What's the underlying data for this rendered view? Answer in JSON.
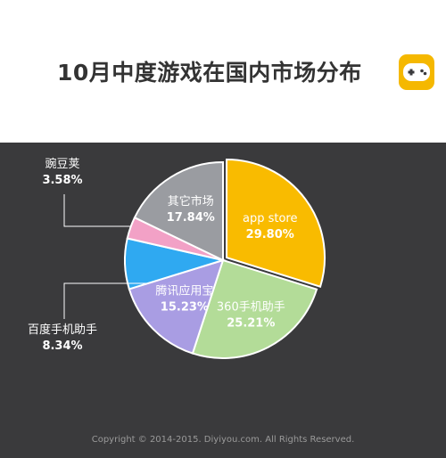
{
  "header": {
    "title": "10月中度游戏在国内市场分布"
  },
  "footer": {
    "copyright": "Copyright © 2014-2015. Diyiyou.com. All Rights Reserved."
  },
  "logo": {
    "icon": "gamepad-icon",
    "color": "#f5b800"
  },
  "chart_data": {
    "type": "pie",
    "title": "10月中度游戏在国内市场分布",
    "start_angle_deg": 0,
    "direction": "clockwise",
    "slices": [
      {
        "label": "app store",
        "value": 29.8,
        "value_text": "29.80%",
        "color": "#f9bb00",
        "explode": true,
        "label_color": "#ffffff"
      },
      {
        "label": "360手机助手",
        "value": 25.21,
        "value_text": "25.21%",
        "color": "#b3dc98",
        "explode": false,
        "label_color": "#ffffff"
      },
      {
        "label": "腾讯应用宝",
        "value": 15.23,
        "value_text": "15.23%",
        "color": "#a99de3",
        "explode": false,
        "label_color": "#ffffff"
      },
      {
        "label": "百度手机助手",
        "value": 8.34,
        "value_text": "8.34%",
        "color": "#2fa9f1",
        "explode": false,
        "label_color": "#ffffff",
        "outside": true
      },
      {
        "label": "豌豆荚",
        "value": 3.58,
        "value_text": "3.58%",
        "color": "#f2a1c6",
        "explode": false,
        "label_color": "#ffffff",
        "outside": true
      },
      {
        "label": "其它市场",
        "value": 17.84,
        "value_text": "17.84%",
        "color": "#9a9ca1",
        "explode": false,
        "label_color": "#ffffff"
      }
    ]
  }
}
